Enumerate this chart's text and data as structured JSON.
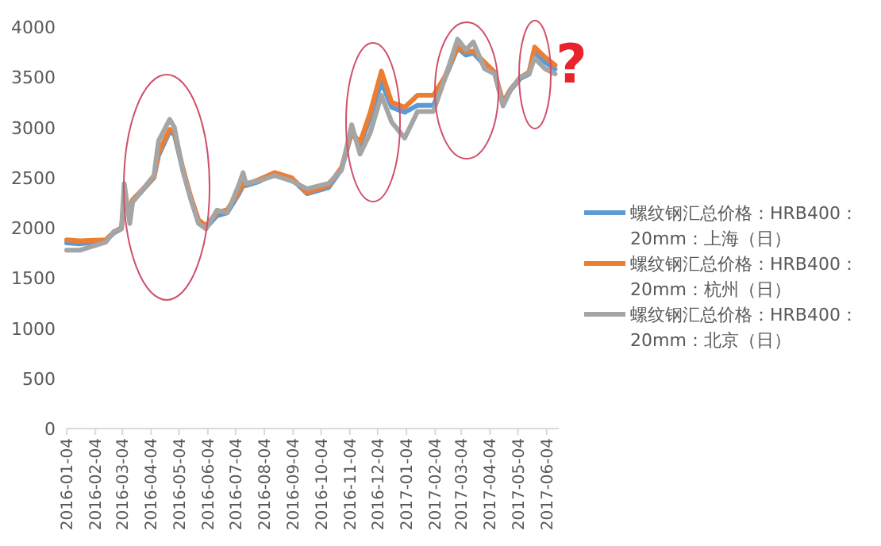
{
  "chart_data": {
    "type": "line",
    "x": [
      "2016-01-04",
      "2016-01-18",
      "2016-02-15",
      "2016-02-24",
      "2016-03-03",
      "2016-03-06",
      "2016-03-12",
      "2016-03-15",
      "2016-04-07",
      "2016-04-12",
      "2016-04-24",
      "2016-04-29",
      "2016-05-08",
      "2016-05-16",
      "2016-05-25",
      "2016-06-02",
      "2016-06-14",
      "2016-06-25",
      "2016-07-07",
      "2016-07-12",
      "2016-07-15",
      "2016-07-29",
      "2016-08-15",
      "2016-09-02",
      "2016-09-19",
      "2016-10-12",
      "2016-10-26",
      "2016-11-06",
      "2016-11-15",
      "2016-11-26",
      "2016-12-08",
      "2016-12-19",
      "2017-01-02",
      "2017-01-16",
      "2017-02-02",
      "2017-02-14",
      "2017-02-28",
      "2017-03-09",
      "2017-03-17",
      "2017-03-29",
      "2017-04-09",
      "2017-04-18",
      "2017-04-26",
      "2017-05-07",
      "2017-05-16",
      "2017-05-22",
      "2017-06-02",
      "2017-06-13"
    ],
    "series": [
      {
        "name": "螺纹钢汇总价格：HRB400：20mm：上海（日）",
        "color": "#5b9bd5",
        "values": [
          1850,
          1840,
          1870,
          1950,
          1990,
          2240,
          2180,
          2260,
          2500,
          2720,
          2960,
          2930,
          2580,
          2310,
          2050,
          2000,
          2120,
          2150,
          2330,
          2420,
          2420,
          2460,
          2540,
          2490,
          2340,
          2400,
          2580,
          2950,
          2820,
          3100,
          3450,
          3200,
          3150,
          3220,
          3220,
          3480,
          3790,
          3720,
          3740,
          3620,
          3540,
          3230,
          3370,
          3490,
          3530,
          3750,
          3650,
          3580
        ]
      },
      {
        "name": "螺纹钢汇总价格：HRB400：20mm：杭州（日）",
        "color": "#ed7d31",
        "values": [
          1880,
          1870,
          1880,
          1960,
          2000,
          2250,
          2200,
          2280,
          2500,
          2750,
          2980,
          2950,
          2600,
          2330,
          2080,
          2020,
          2150,
          2180,
          2350,
          2450,
          2430,
          2480,
          2550,
          2500,
          2350,
          2420,
          2600,
          2950,
          2850,
          3150,
          3560,
          3250,
          3200,
          3320,
          3320,
          3500,
          3800,
          3750,
          3760,
          3650,
          3550,
          3250,
          3380,
          3500,
          3550,
          3800,
          3700,
          3620
        ]
      },
      {
        "name": "螺纹钢汇总价格：HRB400：20mm：北京（日）",
        "color": "#a5a5a5",
        "values": [
          1776,
          1776,
          1856,
          1963,
          1989,
          2441,
          2042,
          2255,
          2521,
          2867,
          3080,
          3000,
          2574,
          2308,
          2042,
          1989,
          2175,
          2149,
          2415,
          2548,
          2441,
          2468,
          2521,
          2468,
          2388,
          2441,
          2574,
          3026,
          2734,
          2947,
          3319,
          3053,
          2894,
          3159,
          3159,
          3479,
          3878,
          3771,
          3851,
          3585,
          3532,
          3213,
          3372,
          3505,
          3532,
          3691,
          3585,
          3532
        ]
      }
    ],
    "xlim": [
      "2016-01-04",
      "2017-06-17"
    ],
    "xticks": [
      "2016-01-04",
      "2016-02-04",
      "2016-03-04",
      "2016-04-04",
      "2016-05-04",
      "2016-06-04",
      "2016-07-04",
      "2016-08-04",
      "2016-09-04",
      "2016-10-04",
      "2016-11-04",
      "2016-12-04",
      "2017-01-04",
      "2017-02-04",
      "2017-03-04",
      "2017-04-04",
      "2017-05-04",
      "2017-06-04"
    ],
    "ylim": [
      0,
      4000
    ],
    "yticks": [
      0,
      500,
      1000,
      1500,
      2000,
      2500,
      3000,
      3500,
      4000
    ],
    "annotations": [
      "?"
    ],
    "legend": "right",
    "grid": false,
    "marker": "none",
    "line_style": "solid"
  }
}
